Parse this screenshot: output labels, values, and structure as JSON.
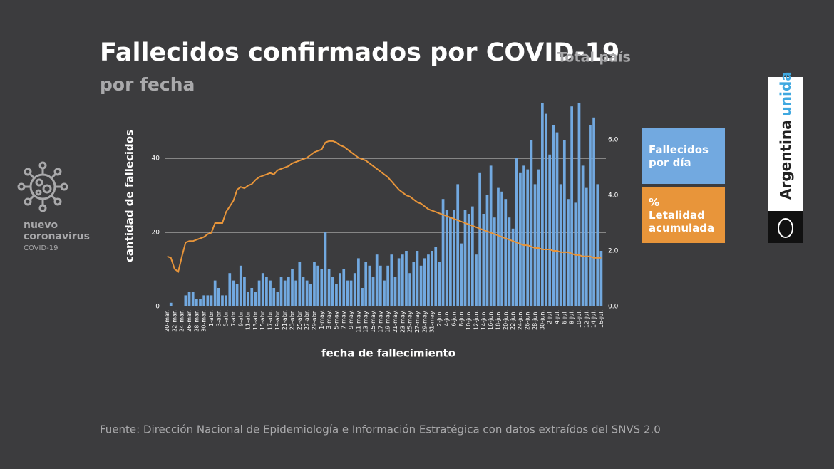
{
  "chart_data": {
    "type": "bar",
    "title": "Fallecidos confirmados por COVID-19",
    "subtitle": "Total país",
    "subtitle2": "por fecha",
    "y_label": "cantidad de fallecidos",
    "x_label": "fecha de fallecimiento",
    "categories": [
      "20-mar.",
      null,
      "22-mar.",
      null,
      "24-mar.",
      null,
      "26-mar.",
      null,
      "28-mar.",
      null,
      "30-mar.",
      null,
      "1-abr.",
      null,
      "3-abr.",
      null,
      "5-abr.",
      null,
      "7-abr.",
      null,
      "9-abr.",
      null,
      "11-abr.",
      null,
      "13-abr.",
      null,
      "15-abr.",
      null,
      "17-abr.",
      null,
      "19-abr.",
      null,
      "21-abr.",
      null,
      "23-abr.",
      null,
      "25-abr.",
      null,
      "27-abr.",
      null,
      "29-abr.",
      null,
      "1-may.",
      null,
      "3-may.",
      null,
      "5-may.",
      null,
      "7-may.",
      null,
      "9-may.",
      null,
      "11-may.",
      null,
      "13-may.",
      null,
      "15-may.",
      null,
      "17-may.",
      null,
      "19-may.",
      null,
      "21-may.",
      null,
      "23-may.",
      null,
      "25-may.",
      null,
      "27-may.",
      null,
      "29-may.",
      null,
      "31-may.",
      null,
      "2-jun.",
      null,
      "4-jun.",
      null,
      "6-jun.",
      null,
      "8-jun.",
      null,
      "10-jun.",
      null,
      "12-jun.",
      null,
      "14-jun.",
      null,
      "16-jun.",
      null,
      "18-jun.",
      null,
      "20-jun.",
      null,
      "22-jun.",
      null,
      "24-jun.",
      null,
      "26-jun.",
      null,
      "28-jun.",
      null,
      "30-jun.",
      null,
      "2-jul.",
      null,
      "4-jul.",
      null,
      "6-jul.",
      null,
      "8-jul.",
      null,
      "10-jul.",
      null,
      "12-jul.",
      null,
      "14-jul.",
      null,
      "16-jul."
    ],
    "series": [
      {
        "name": "Fallecidos por día",
        "color": "#72a9e0",
        "type": "bar",
        "values": [
          0,
          1,
          0,
          0,
          0,
          3,
          4,
          4,
          2,
          2,
          3,
          3,
          3,
          7,
          5,
          3,
          3,
          9,
          7,
          6,
          11,
          8,
          4,
          5,
          4,
          7,
          9,
          8,
          7,
          5,
          4,
          8,
          7,
          8,
          10,
          7,
          12,
          8,
          7,
          6,
          12,
          11,
          10,
          20,
          10,
          8,
          6,
          9,
          10,
          7,
          7,
          9,
          13,
          5,
          12,
          11,
          8,
          14,
          11,
          7,
          11,
          14,
          8,
          13,
          14,
          15,
          9,
          12,
          15,
          11,
          13,
          14,
          15,
          16,
          12,
          29,
          26,
          24,
          26,
          33,
          17,
          26,
          25,
          27,
          14,
          36,
          25,
          30,
          38,
          24,
          32,
          31,
          29,
          24,
          21,
          40,
          36,
          38,
          37,
          45,
          33,
          37,
          55,
          52,
          41,
          49,
          47,
          33,
          45,
          29,
          54,
          28,
          55,
          38,
          32,
          49,
          51,
          33,
          15
        ]
      },
      {
        "name": "% Letalidad acumulada",
        "color": "#e8953a",
        "type": "line",
        "axis": "y2",
        "values": [
          1.8,
          1.75,
          1.35,
          1.25,
          1.8,
          2.3,
          2.35,
          2.35,
          2.4,
          2.45,
          2.5,
          2.6,
          2.65,
          3.0,
          3.0,
          3.0,
          3.4,
          3.6,
          3.8,
          4.2,
          4.3,
          4.25,
          4.35,
          4.4,
          4.55,
          4.65,
          4.7,
          4.75,
          4.8,
          4.75,
          4.9,
          4.95,
          5.0,
          5.05,
          5.15,
          5.2,
          5.25,
          5.3,
          5.35,
          5.45,
          5.55,
          5.6,
          5.65,
          5.9,
          5.95,
          5.95,
          5.9,
          5.8,
          5.75,
          5.65,
          5.55,
          5.45,
          5.35,
          5.3,
          5.25,
          5.15,
          5.05,
          4.95,
          4.85,
          4.75,
          4.65,
          4.5,
          4.35,
          4.2,
          4.1,
          4.0,
          3.95,
          3.85,
          3.75,
          3.7,
          3.6,
          3.5,
          3.45,
          3.4,
          3.35,
          3.3,
          3.25,
          3.2,
          3.15,
          3.1,
          3.05,
          3.0,
          2.95,
          2.9,
          2.85,
          2.8,
          2.75,
          2.7,
          2.65,
          2.6,
          2.55,
          2.5,
          2.45,
          2.4,
          2.35,
          2.3,
          2.25,
          2.2,
          2.2,
          2.15,
          2.1,
          2.1,
          2.05,
          2.05,
          2.05,
          2.0,
          2.0,
          1.95,
          1.95,
          1.95,
          1.9,
          1.85,
          1.85,
          1.8,
          1.8,
          1.8,
          1.75,
          1.75,
          1.75
        ]
      }
    ],
    "ylim": [
      0,
      55
    ],
    "yticks": [
      0,
      20,
      40
    ],
    "y2lim": [
      0,
      7.33
    ],
    "y2ticks": [
      {
        "value": 0,
        "label": "0.0"
      },
      {
        "value": 2,
        "label": "2.0"
      },
      {
        "value": 4,
        "label": "4.0"
      },
      {
        "value": 6,
        "label": "6.0"
      }
    ],
    "grid": true
  },
  "source": "Fuente: Dirección Nacional de Epidemiología e Información Estratégica con datos extraídos del SNVS 2.0",
  "logo": {
    "line1": "nuevo",
    "line2": "coronavirus",
    "line3": "COVID-19"
  },
  "brand": {
    "word1": "Argentina",
    "word2": "unida"
  }
}
